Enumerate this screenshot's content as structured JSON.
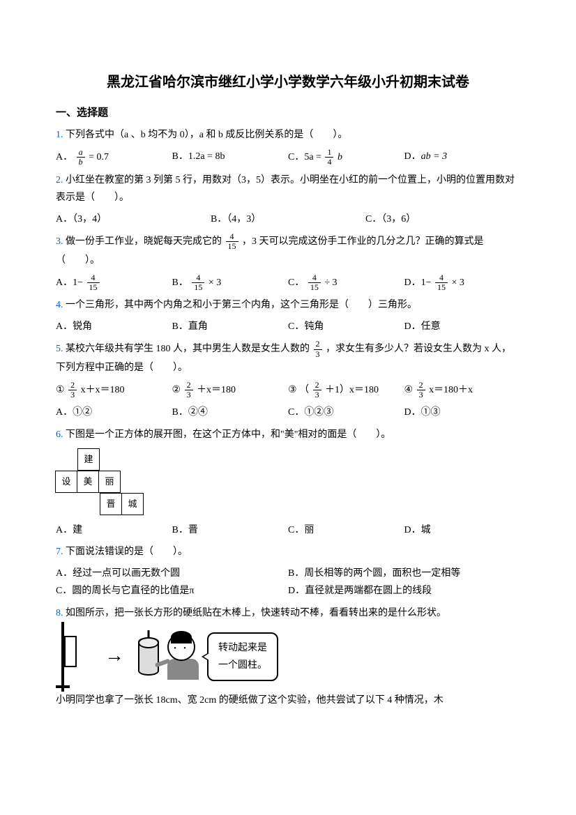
{
  "title": "黑龙江省哈尔滨市继红小学小学数学六年级小升初期末试卷",
  "section1": "一、选择题",
  "q1": {
    "num": "1.",
    "text": "下列各式中（a 、b 均不为 0），a 和 b 成反比例关系的是（　　）。",
    "A": "= 0.7",
    "B": "1.2a = 8b",
    "C_pre": "5a =",
    "C_post": "b",
    "D": "ab = 3"
  },
  "q2": {
    "num": "2.",
    "text": "小红坐在教室的第 3 列第 5 行，用数对（3，5）表示。小明坐在小红的前一个位置上，小明的位置用数对表示是（　　）。",
    "A": "（3，4）",
    "B": "（4，3）",
    "C": "（3，6）"
  },
  "q3": {
    "num": "3.",
    "text_pre": "做一份手工作业，晓妮每天完成它的",
    "text_post": "，3 天可以完成这份手工作业的几分之几？正确的算式是（　　）。",
    "A_pre": "1−",
    "B_post": "× 3",
    "C_post": "÷ 3",
    "D_pre": "1−",
    "D_post": "× 3"
  },
  "q4": {
    "num": "4.",
    "text": "一个三角形，其中两个内角之和小于第三个内角，这个三角形是（　　）三角形。",
    "A": "锐角",
    "B": "直角",
    "C": "钝角",
    "D": "任意"
  },
  "q5": {
    "num": "5.",
    "text_pre": "某校六年级共有学生 180 人，其中男生人数是女生人数的",
    "text_post": "，求女生有多少人？若设女生人数为 x 人，下列方程中正确的是（　　）。",
    "eq1_post": "x＋x＝180",
    "eq2_post": "＋x＝180",
    "eq3_pre": "（",
    "eq3_post": "＋1）x＝180",
    "eq4_post": "x＝180＋x",
    "A": "①②",
    "B": "②④",
    "C": "①②③",
    "D": "①③"
  },
  "q6": {
    "num": "6.",
    "text": "下图是一个正方体的展开图，在这个正方体中，和\"美\"相对的面是（　　）。",
    "cells": {
      "jian": "建",
      "she": "设",
      "mei": "美",
      "li": "丽",
      "jin": "晋",
      "cheng": "城"
    },
    "A": "建",
    "B": "晋",
    "C": "丽",
    "D": "城"
  },
  "q7": {
    "num": "7.",
    "text": "下面说法错误的是（　　）。",
    "A": "经过一点可以画无数个圆",
    "B": "周长相等的两个圆，面积也一定相等",
    "C": "圆的周长与它直径的比值是π",
    "D": "直径就是两端都在圆上的线段"
  },
  "q8": {
    "num": "8.",
    "text": "如图所示，把一张长方形的硬纸贴在木棒上，快速转动不棒，看看转出来的是什么形状。",
    "speech1": "转动起来是",
    "speech2": "一个圆柱。",
    "text2": "小明同学也拿了一张长 18cm、宽 2cm 的硬纸做了这个实验，他共尝试了以下 4 种情况，木"
  },
  "frac": {
    "a": "a",
    "b": "b",
    "n1": "1",
    "n4": "4",
    "n4b": "4",
    "n15": "15",
    "n2": "2",
    "n3": "3"
  }
}
